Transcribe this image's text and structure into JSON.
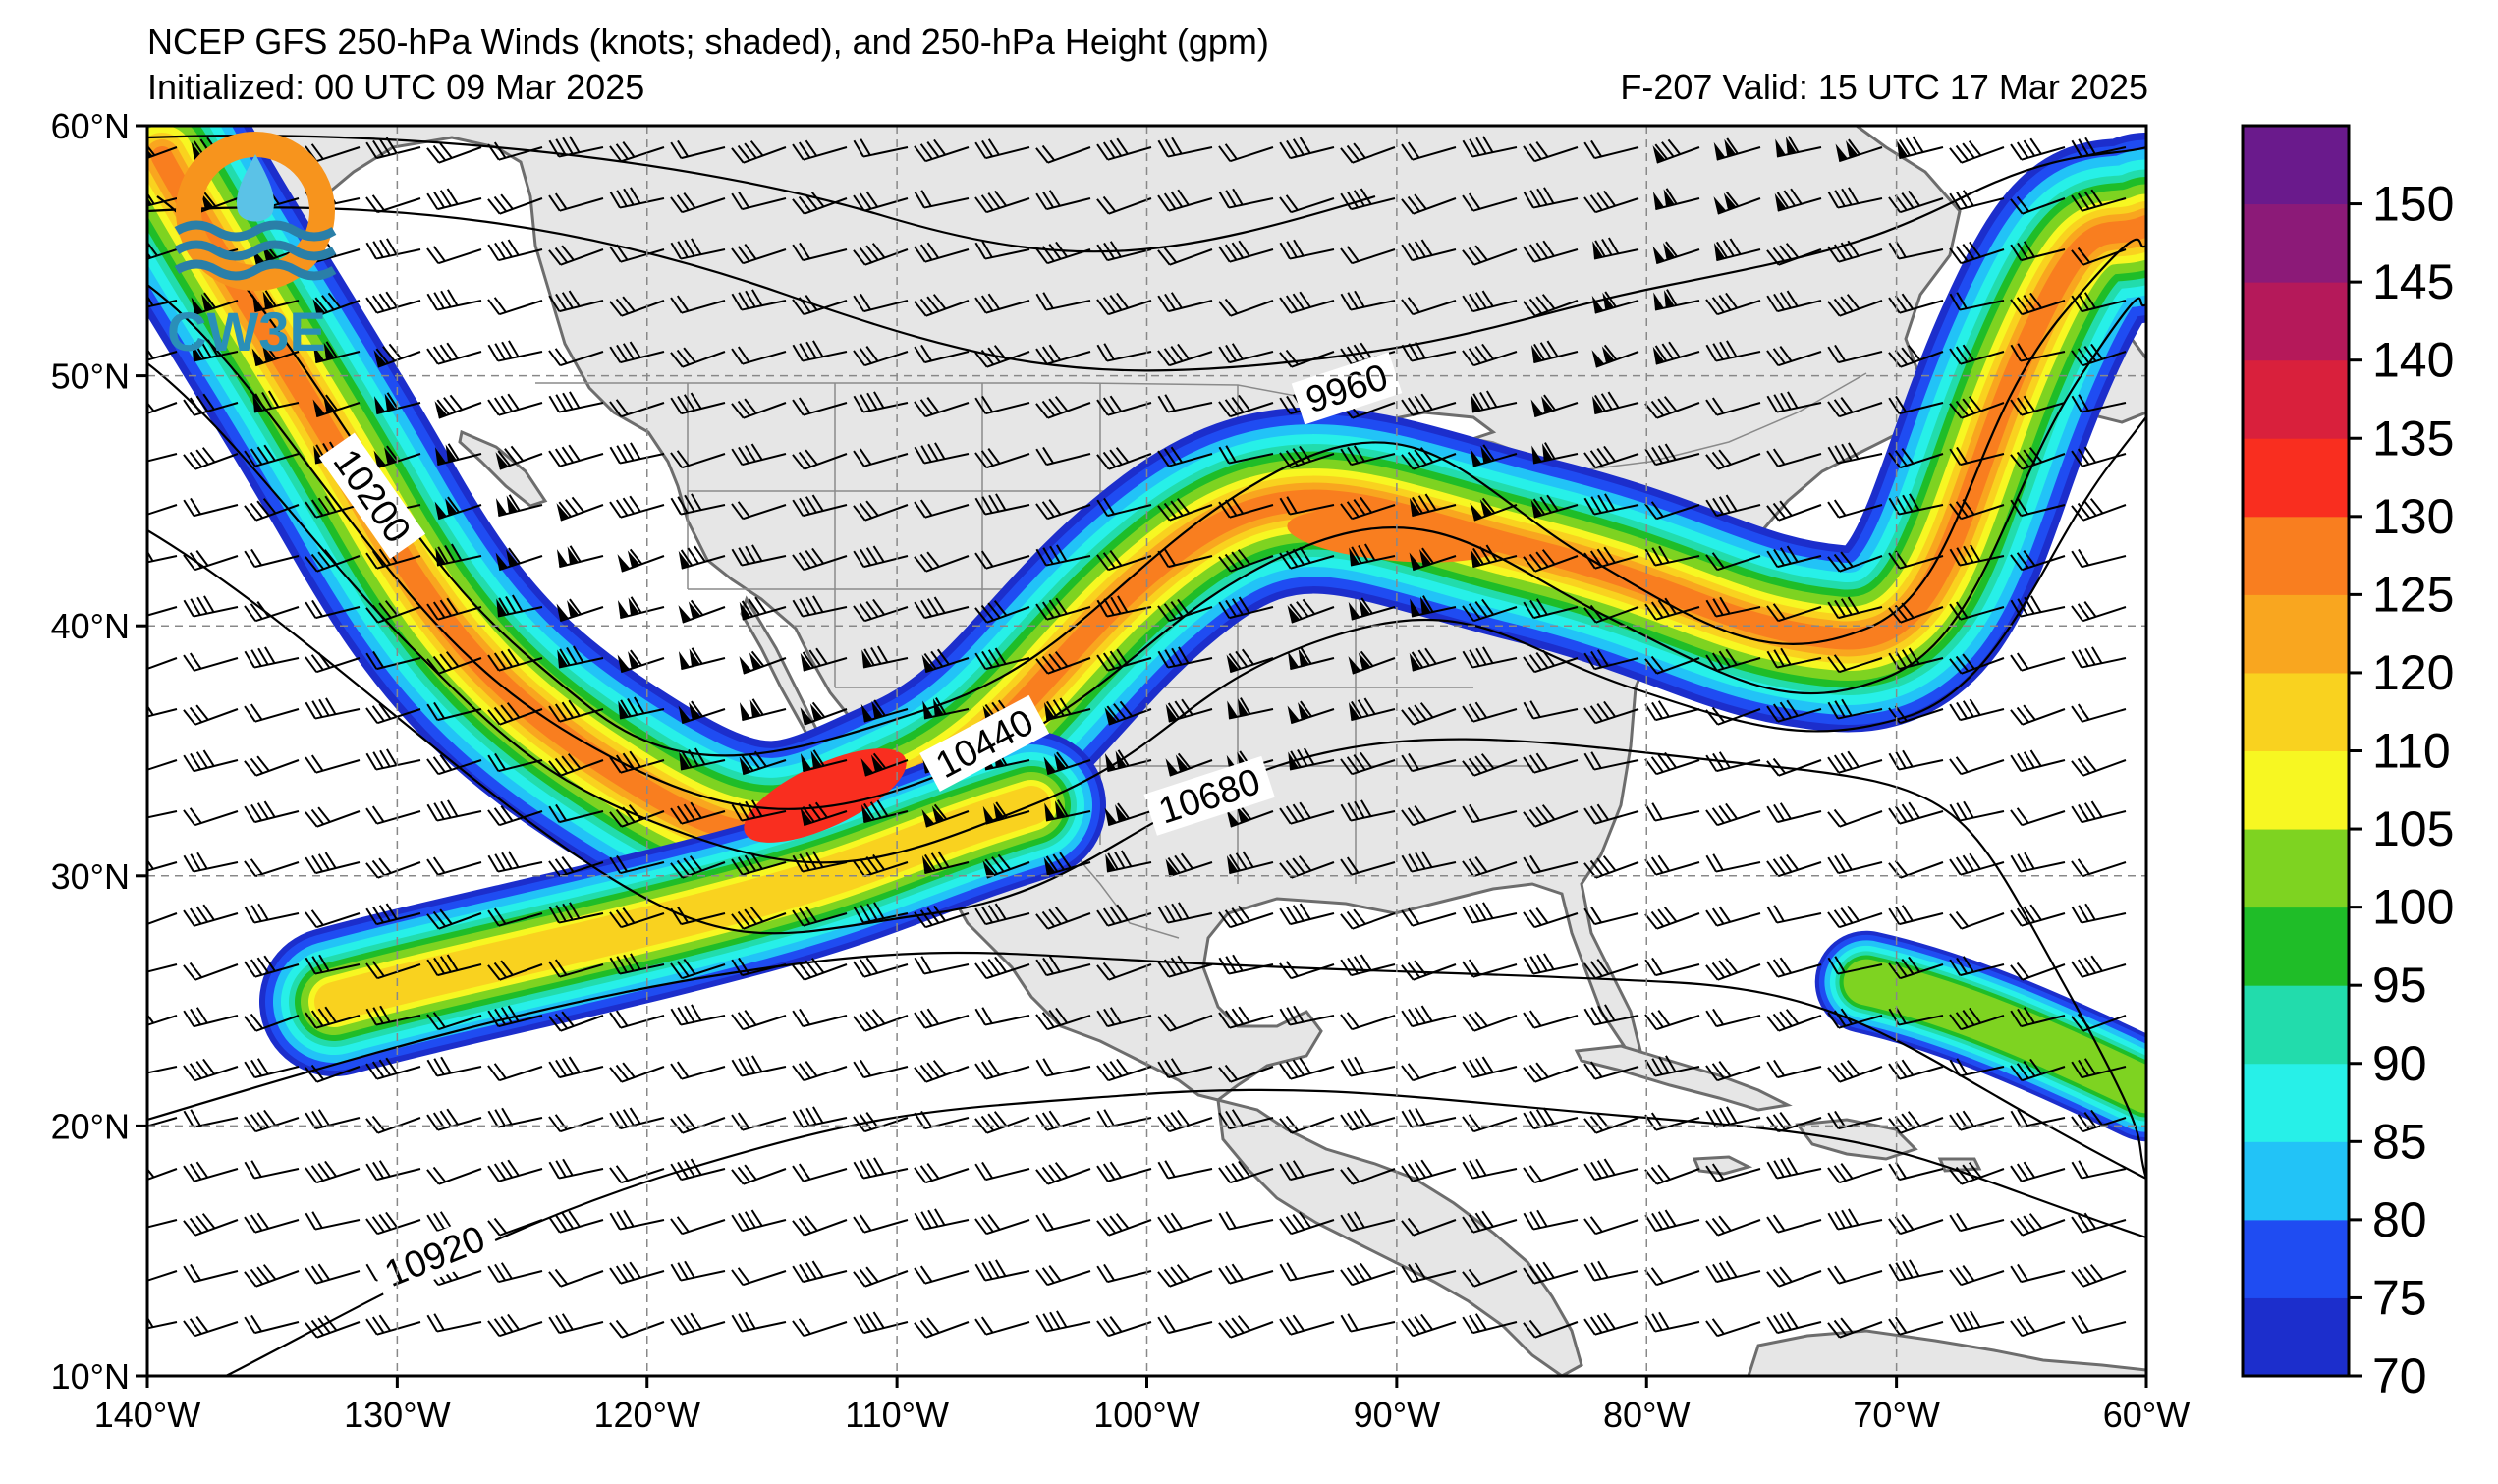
{
  "header": {
    "title": "NCEP GFS 250-hPa Winds (knots; shaded), and 250-hPa Height (gpm)",
    "initialized": "Initialized: 00 UTC 09 Mar 2025",
    "valid": "F-207  Valid: 15 UTC 17 Mar 2025"
  },
  "logo": {
    "text": "CW3E",
    "icon": "cw3e-logo-icon",
    "colors": {
      "ring": "#f7941d",
      "waves": "#2a7fa8",
      "drop": "#5bc2e7"
    }
  },
  "map": {
    "lon_range": [
      -140,
      -60
    ],
    "lat_range": [
      10,
      60
    ],
    "lon_ticks": [
      {
        "lon": -140,
        "label": "140°W"
      },
      {
        "lon": -130,
        "label": "130°W"
      },
      {
        "lon": -120,
        "label": "120°W"
      },
      {
        "lon": -110,
        "label": "110°W"
      },
      {
        "lon": -100,
        "label": "100°W"
      },
      {
        "lon": -90,
        "label": "90°W"
      },
      {
        "lon": -80,
        "label": "80°W"
      },
      {
        "lon": -70,
        "label": "70°W"
      },
      {
        "lon": -60,
        "label": "60°W"
      }
    ],
    "lat_ticks": [
      {
        "lat": 60,
        "label": "60°N"
      },
      {
        "lat": 50,
        "label": "50°N"
      },
      {
        "lat": 40,
        "label": "40°N"
      },
      {
        "lat": 30,
        "label": "30°N"
      },
      {
        "lat": 20,
        "label": "20°N"
      },
      {
        "lat": 10,
        "label": "10°N"
      }
    ],
    "gridlines": true,
    "land_color": "#e6e6e6",
    "ocean_color": "#ffffff",
    "contour_labels": [
      {
        "text": "9960",
        "lon": -92,
        "lat": 49.5,
        "angle": -18
      },
      {
        "text": "10200",
        "lon": -131,
        "lat": 45.2,
        "angle": 55
      },
      {
        "text": "10440",
        "lon": -106.5,
        "lat": 35.3,
        "angle": -28
      },
      {
        "text": "10680",
        "lon": -97.5,
        "lat": 33.2,
        "angle": -18
      },
      {
        "text": "10920",
        "lon": -128.5,
        "lat": 14.8,
        "angle": -22
      }
    ]
  },
  "colorbar": {
    "levels": [
      70,
      75,
      80,
      85,
      90,
      95,
      100,
      105,
      110,
      120,
      125,
      130,
      135,
      140,
      145,
      150
    ],
    "colors": [
      "#1c2ecc",
      "#1f4cf2",
      "#22c3f7",
      "#27f0e8",
      "#22dcac",
      "#1fbd28",
      "#7ed321",
      "#f7f722",
      "#f9d21f",
      "#f9a61f",
      "#f97e1f",
      "#f92e1f",
      "#d9203c",
      "#b5195a",
      "#8c1a78",
      "#6a1a8c"
    ],
    "labels": [
      "70",
      "75",
      "80",
      "85",
      "90",
      "95",
      "100",
      "105",
      "110",
      "120",
      "125",
      "130",
      "135",
      "140",
      "145",
      "150"
    ]
  }
}
